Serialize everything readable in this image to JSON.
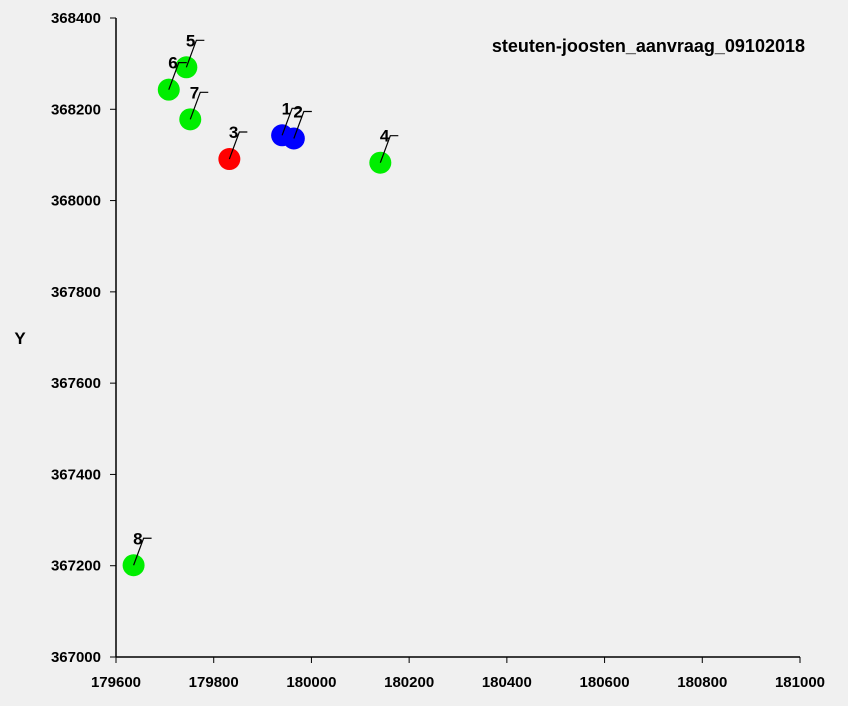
{
  "chart_data": {
    "type": "scatter",
    "title": "steuten-joosten_aanvraag_09102018",
    "xlabel": "",
    "ylabel": "Y",
    "xlim": [
      179600,
      181000
    ],
    "ylim": [
      367000,
      368400
    ],
    "x_ticks": [
      "179600",
      "179800",
      "180000",
      "180200",
      "180400",
      "180600",
      "180800",
      "181000"
    ],
    "y_ticks": [
      "367000",
      "367200",
      "367400",
      "367600",
      "367800",
      "368000",
      "368200",
      "368400"
    ],
    "grid": false,
    "points": [
      {
        "label": "1",
        "x": 179940,
        "y": 368143,
        "color": "#0000ff"
      },
      {
        "label": "2",
        "x": 179964,
        "y": 368136,
        "color": "#0000ff"
      },
      {
        "label": "3",
        "x": 179832,
        "y": 368091,
        "color": "#ff0000"
      },
      {
        "label": "4",
        "x": 180141,
        "y": 368083,
        "color": "#00ee00"
      },
      {
        "label": "5",
        "x": 179744,
        "y": 368292,
        "color": "#00ee00"
      },
      {
        "label": "6",
        "x": 179708,
        "y": 368243,
        "color": "#00ee00"
      },
      {
        "label": "7",
        "x": 179752,
        "y": 368178,
        "color": "#00ee00"
      },
      {
        "label": "8",
        "x": 179636,
        "y": 367201,
        "color": "#00ee00"
      }
    ]
  }
}
